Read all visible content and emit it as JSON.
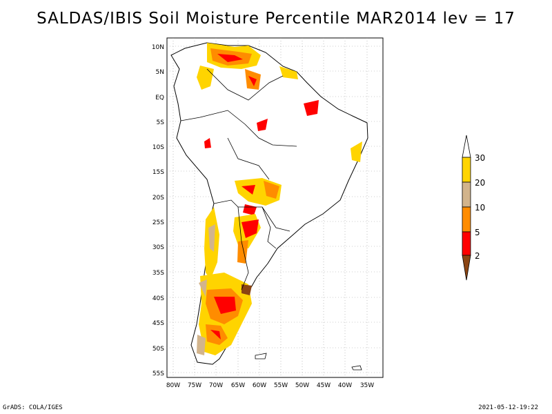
{
  "title": "SALDAS/IBIS Soil Moisture Percentile MAR2014 lev = 17",
  "footer": {
    "left": "GrADS: COLA/IGES",
    "right": "2021-05-12-19:22"
  },
  "map": {
    "lat_labels": [
      "10N",
      "5N",
      "EQ",
      "5S",
      "10S",
      "15S",
      "20S",
      "25S",
      "30S",
      "35S",
      "40S",
      "45S",
      "50S",
      "55S"
    ],
    "lon_labels": [
      "80W",
      "75W",
      "70W",
      "65W",
      "60W",
      "55W",
      "50W",
      "45W",
      "40W",
      "35W"
    ]
  },
  "colorbar": {
    "labels": [
      "30",
      "20",
      "10",
      "5",
      "2"
    ],
    "colors": {
      "above30": "#ffffff",
      "c20_30": "#ffd400",
      "c10_20": "#d2b48c",
      "c5_10": "#ff8c00",
      "c2_5": "#ff0000",
      "below2": "#8b4513"
    }
  },
  "colors": {
    "yellow": "#ffd400",
    "tan": "#d2b48c",
    "orange": "#ff8c00",
    "red": "#ff0000",
    "brown": "#8b4513"
  }
}
